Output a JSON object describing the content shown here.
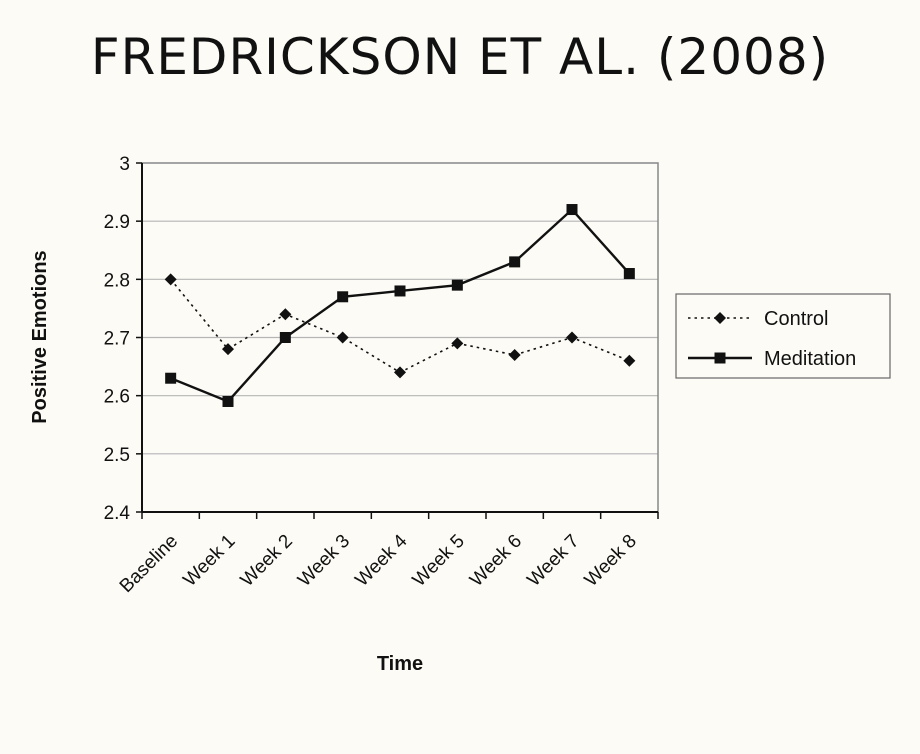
{
  "slide": {
    "title": "FREDRICKSON ET AL. (2008)"
  },
  "chart_data": {
    "type": "line",
    "title": "",
    "xlabel": "Time",
    "ylabel": "Positive Emotions",
    "categories": [
      "Baseline",
      "Week 1",
      "Week 2",
      "Week 3",
      "Week 4",
      "Week 5",
      "Week 6",
      "Week 7",
      "Week 8"
    ],
    "ylim": [
      2.4,
      3.0
    ],
    "yticks": [
      "2.4",
      "2.5",
      "2.6",
      "2.7",
      "2.8",
      "2.9",
      "3"
    ],
    "grid": true,
    "legend_position": "right",
    "series": [
      {
        "name": "Control",
        "style": "dotted",
        "marker": "diamond",
        "color": "#111111",
        "values": [
          2.8,
          2.68,
          2.74,
          2.7,
          2.64,
          2.69,
          2.67,
          2.7,
          2.66
        ]
      },
      {
        "name": "Meditation",
        "style": "solid",
        "marker": "square",
        "color": "#111111",
        "values": [
          2.63,
          2.59,
          2.7,
          2.77,
          2.78,
          2.79,
          2.83,
          2.92,
          2.81
        ]
      }
    ]
  }
}
